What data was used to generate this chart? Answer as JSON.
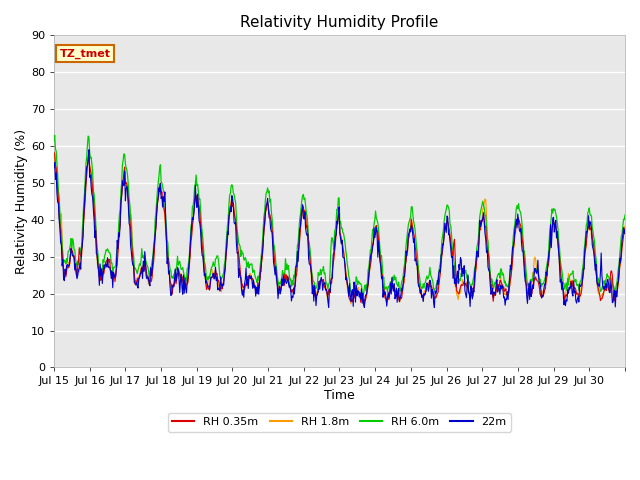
{
  "title": "Relativity Humidity Profile",
  "xlabel": "Time",
  "ylabel": "Relativity Humidity (%)",
  "ylim": [
    0,
    90
  ],
  "yticks": [
    0,
    10,
    20,
    30,
    40,
    50,
    60,
    70,
    80,
    90
  ],
  "xtick_labels": [
    "Jul 15",
    "Jul 16",
    "Jul 17",
    "Jul 18",
    "Jul 19",
    "Jul 20",
    "Jul 21",
    "Jul 22",
    "Jul 23",
    "Jul 24",
    "Jul 25",
    "Jul 26",
    "Jul 27",
    "Jul 28",
    "Jul 29",
    "Jul 30"
  ],
  "legend_entries": [
    "RH 0.35m",
    "RH 1.8m",
    "RH 6.0m",
    "22m"
  ],
  "legend_colors": [
    "#dd0000",
    "#ff9900",
    "#00cc00",
    "#0000cc"
  ],
  "annotation_text": "TZ_tmet",
  "annotation_bg": "#ffffcc",
  "annotation_border": "#cc6600",
  "plot_bg": "#e8e8e8",
  "line_colors": [
    "#dd0000",
    "#ff9900",
    "#00cc00",
    "#0000cc"
  ],
  "title_fontsize": 11,
  "axis_label_fontsize": 9,
  "tick_label_fontsize": 8,
  "n_days": 16,
  "pts_per_day": 48
}
